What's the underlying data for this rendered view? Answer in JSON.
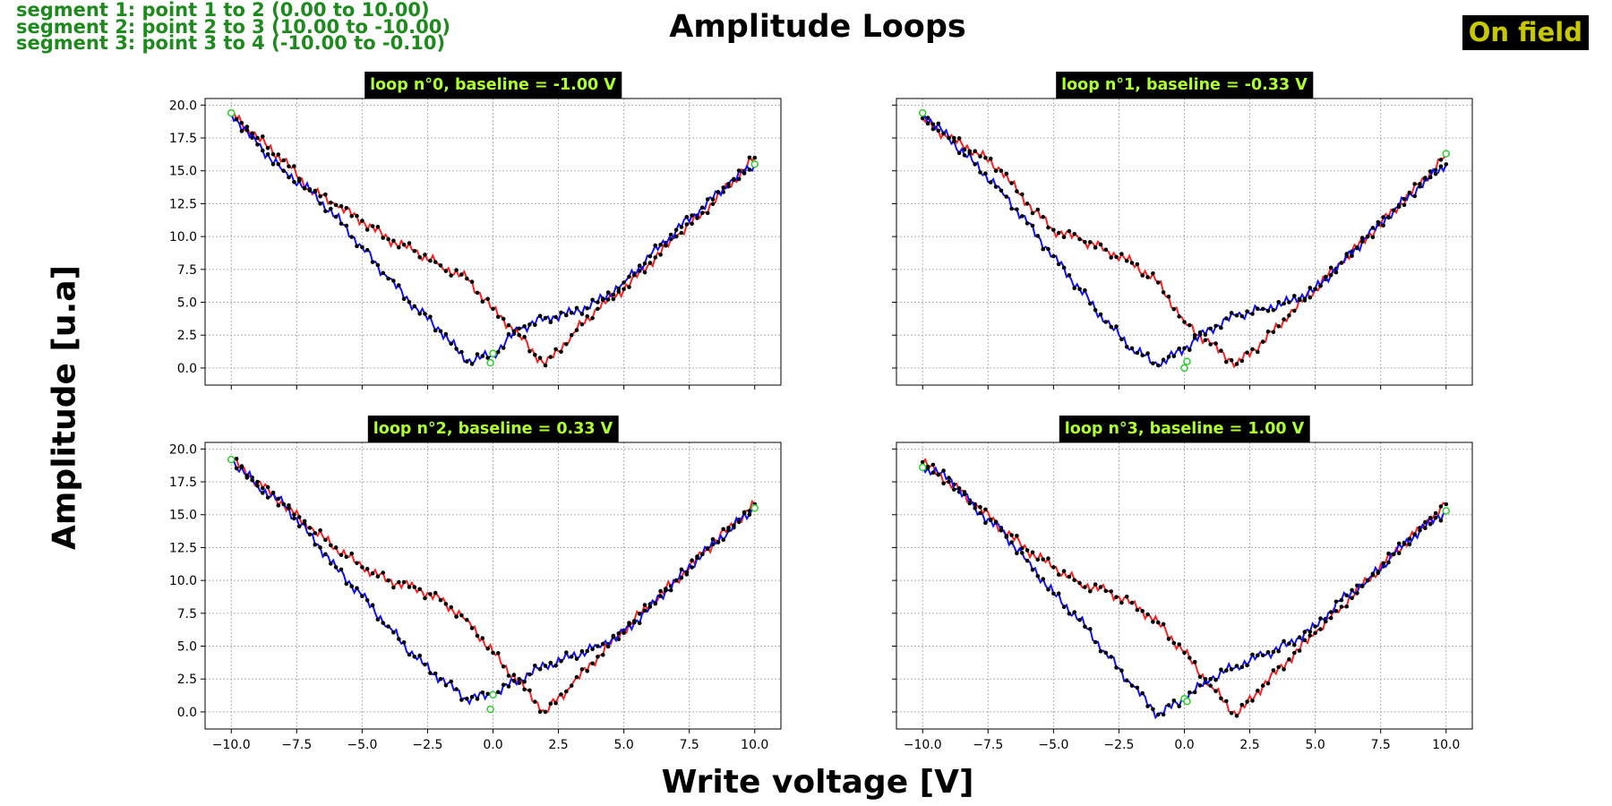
{
  "segments": [
    "segment 1: point 1 to 2 (0.00 to 10.00)",
    "segment 2: point 2 to 3 (10.00 to -10.00)",
    "segment 3: point 3 to 4 (-10.00 to -0.10)"
  ],
  "badge": "On field",
  "chart_data": {
    "type": "line",
    "title": "Amplitude Loops",
    "xlabel": "Write voltage [V]",
    "ylabel": "Amplitude [u.a]",
    "xlim": [
      -11,
      11
    ],
    "ylim": [
      -1.3,
      20.5
    ],
    "xticks": [
      "−10.0",
      "−7.5",
      "−5.0",
      "−2.5",
      "0.0",
      "2.5",
      "5.0",
      "7.5",
      "10.0"
    ],
    "yticks": [
      "0.0",
      "2.5",
      "5.0",
      "7.5",
      "10.0",
      "12.5",
      "15.0",
      "17.5",
      "20.0"
    ],
    "grid": true,
    "colors": {
      "forward": "#ff2020",
      "backward": "#1010ff",
      "marker": "#000000",
      "endpoint": "#2ecc2e",
      "title_bg": "#000000",
      "title_text": "#adff2f"
    },
    "panels": [
      {
        "title": "loop n°0, baseline = -1.00 V",
        "forward": {
          "x": [
            -10,
            -9,
            -8,
            -7,
            -6,
            -5,
            -4,
            -3,
            -2,
            -1,
            0,
            1,
            2,
            3,
            4,
            5,
            6,
            7,
            8,
            9,
            10
          ],
          "y": [
            19.4,
            17.5,
            15.8,
            13.6,
            12.4,
            11.2,
            9.8,
            8.9,
            7.8,
            6.8,
            4.5,
            2.5,
            0.2,
            2.5,
            4.5,
            6.0,
            8.0,
            10.0,
            11.8,
            13.8,
            16.0
          ]
        },
        "backward": {
          "x": [
            10,
            9,
            8,
            7,
            6,
            5,
            4,
            3,
            2,
            1,
            0,
            -1,
            -2,
            -3,
            -4,
            -5,
            -6,
            -7,
            -8,
            -9,
            -10
          ],
          "y": [
            15.5,
            14.0,
            12.2,
            10.5,
            8.5,
            6.5,
            5.0,
            4.2,
            3.8,
            3.0,
            1.0,
            0.5,
            2.8,
            4.7,
            6.8,
            9.2,
            11.5,
            13.5,
            15.0,
            17.0,
            19.4
          ]
        },
        "endpoints": {
          "x": [
            -10,
            10,
            0,
            -0.1
          ],
          "y": [
            19.4,
            15.5,
            1.1,
            0.4
          ]
        }
      },
      {
        "title": "loop n°1, baseline = -0.33 V",
        "forward": {
          "x": [
            -10,
            -9,
            -8,
            -7,
            -6,
            -5,
            -4,
            -3,
            -2,
            -1,
            0,
            1,
            2,
            3,
            4,
            5,
            6,
            7,
            8,
            9,
            10
          ],
          "y": [
            19.0,
            17.5,
            16.5,
            15.0,
            12.5,
            10.5,
            9.8,
            9.0,
            8.0,
            6.5,
            3.5,
            1.8,
            0.3,
            2.0,
            4.0,
            6.0,
            8.0,
            10.0,
            12.0,
            14.0,
            16.2
          ]
        },
        "backward": {
          "x": [
            10,
            9,
            8,
            7,
            6,
            5,
            4,
            3,
            2,
            1,
            0,
            -1,
            -2,
            -3,
            -4,
            -5,
            -6,
            -7,
            -8,
            -9,
            -10
          ],
          "y": [
            15.5,
            13.8,
            12.0,
            10.0,
            8.0,
            6.0,
            5.0,
            4.5,
            4.0,
            3.0,
            1.5,
            0.2,
            1.5,
            3.5,
            6.0,
            8.5,
            11.0,
            13.5,
            15.5,
            17.5,
            19.4
          ]
        },
        "endpoints": {
          "x": [
            -10,
            10,
            0,
            0.1
          ],
          "y": [
            19.4,
            16.3,
            0.0,
            0.5
          ]
        }
      },
      {
        "title": "loop n°2, baseline = 0.33 V",
        "forward": {
          "x": [
            -10,
            -9,
            -8,
            -7,
            -6,
            -5,
            -4,
            -3,
            -2,
            -1,
            0,
            1,
            2,
            3,
            4,
            5,
            6,
            7,
            8,
            9,
            10
          ],
          "y": [
            19.2,
            17.5,
            15.8,
            14.0,
            12.5,
            11.0,
            10.0,
            9.5,
            8.5,
            7.0,
            4.5,
            2.2,
            0.0,
            2.0,
            4.2,
            6.2,
            8.2,
            10.0,
            12.0,
            14.0,
            15.8
          ]
        },
        "backward": {
          "x": [
            10,
            9,
            8,
            7,
            6,
            5,
            4,
            3,
            2,
            1,
            0,
            -1,
            -2,
            -3,
            -4,
            -5,
            -6,
            -7,
            -8,
            -9,
            -10
          ],
          "y": [
            15.5,
            13.8,
            12.0,
            10.0,
            8.0,
            6.0,
            5.0,
            4.2,
            3.5,
            2.5,
            1.3,
            1.0,
            2.5,
            4.2,
            6.5,
            8.8,
            11.0,
            13.5,
            15.8,
            17.2,
            19.2
          ]
        },
        "endpoints": {
          "x": [
            -10,
            10,
            0,
            -0.1
          ],
          "y": [
            19.2,
            15.5,
            1.3,
            0.2
          ]
        }
      },
      {
        "title": "loop n°3, baseline = 1.00 V",
        "forward": {
          "x": [
            -10,
            -9,
            -8,
            -7,
            -6,
            -5,
            -4,
            -3,
            -2,
            -1,
            0,
            1,
            2,
            3,
            4,
            5,
            6,
            7,
            8,
            9,
            10
          ],
          "y": [
            19.0,
            17.5,
            15.8,
            14.0,
            12.3,
            11.0,
            9.8,
            9.2,
            8.3,
            6.8,
            4.5,
            2.0,
            -0.3,
            2.0,
            4.0,
            6.0,
            8.0,
            10.0,
            12.0,
            14.0,
            15.8
          ]
        },
        "backward": {
          "x": [
            10,
            9,
            8,
            7,
            6,
            5,
            4,
            3,
            2,
            1,
            0,
            -1,
            -2,
            -3,
            -4,
            -5,
            -6,
            -7,
            -8,
            -9,
            -10
          ],
          "y": [
            15.3,
            13.8,
            12.0,
            10.0,
            8.5,
            6.5,
            5.2,
            4.3,
            3.5,
            2.5,
            1.0,
            -0.2,
            2.0,
            4.5,
            7.0,
            9.0,
            11.5,
            13.8,
            15.5,
            17.8,
            18.6
          ]
        },
        "endpoints": {
          "x": [
            -10,
            10,
            0,
            0.1
          ],
          "y": [
            18.6,
            15.3,
            1.0,
            0.8
          ]
        }
      }
    ]
  }
}
